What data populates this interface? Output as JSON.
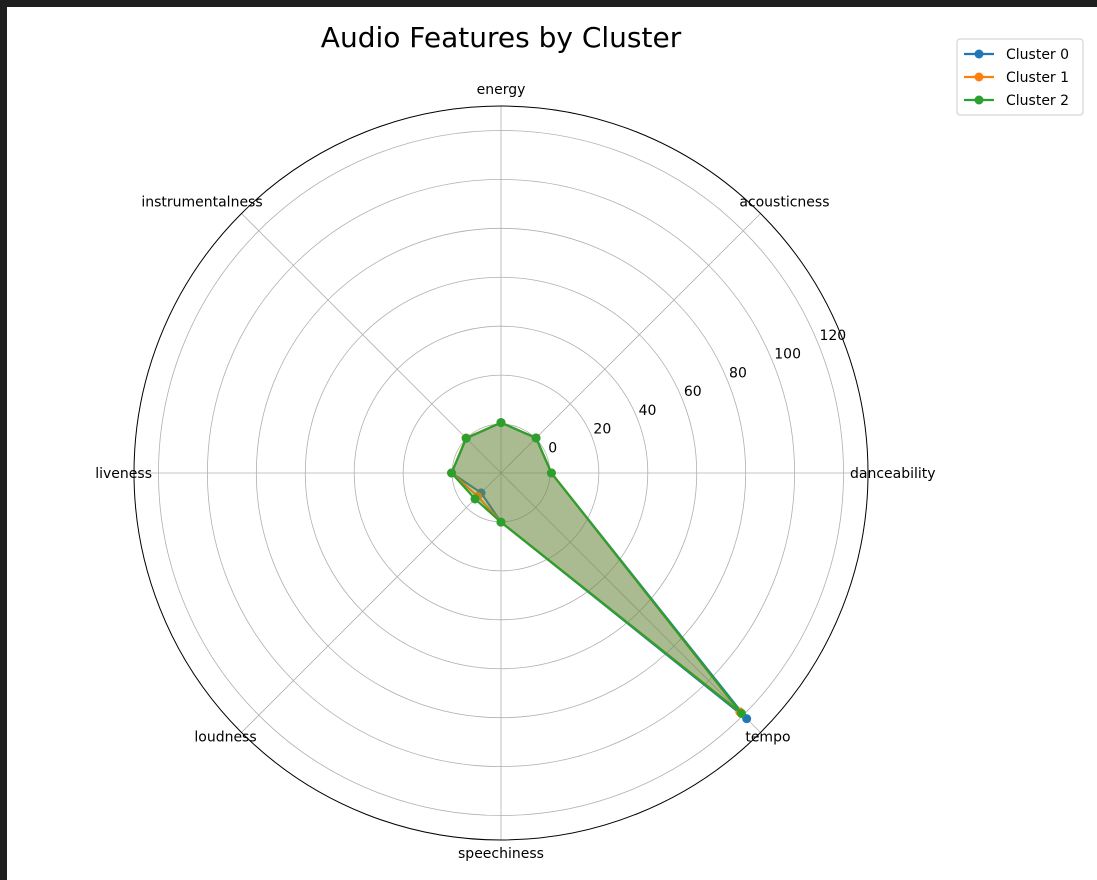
{
  "chart_data": {
    "type": "radar",
    "title": "Audio Features by Cluster",
    "axes": [
      "danceability",
      "acousticness",
      "energy",
      "instrumentalness",
      "liveness",
      "loudness",
      "speechiness",
      "tempo"
    ],
    "r_ticks": [
      0,
      20,
      40,
      60,
      80,
      100,
      120
    ],
    "rlim": [
      -20,
      130
    ],
    "grid": true,
    "legend_position": "upper right, outside plot",
    "series": [
      {
        "name": "Cluster 0",
        "color": "#1f77b4",
        "values": [
          0.6,
          0.25,
          0.6,
          0.1,
          0.2,
          -8.5,
          0.08,
          122
        ]
      },
      {
        "name": "Cluster 1",
        "color": "#ff7f0e",
        "values": [
          0.6,
          0.25,
          0.6,
          0.2,
          0.2,
          -6.5,
          0.08,
          118
        ]
      },
      {
        "name": "Cluster 2",
        "color": "#2ca02c",
        "values": [
          0.6,
          0.25,
          0.6,
          0.1,
          0.2,
          -5.0,
          0.08,
          119
        ]
      }
    ]
  }
}
